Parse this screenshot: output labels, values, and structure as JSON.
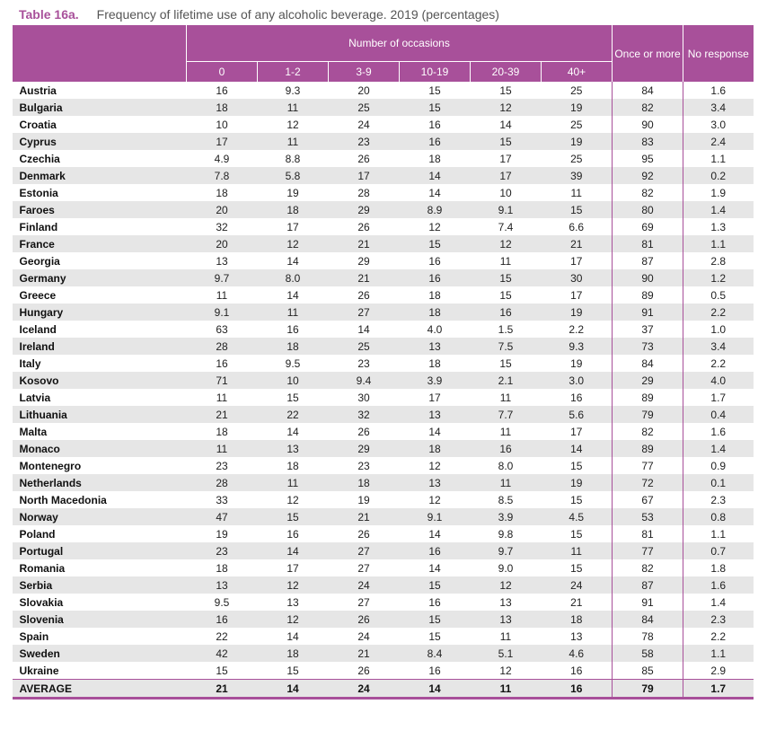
{
  "title": {
    "table_number": "Table 16a.",
    "caption": "Frequency of lifetime use of any alcoholic beverage. 2019 (percentages)"
  },
  "header": {
    "group_label": "Number of occasions",
    "once_or_more": "Once or more",
    "no_response": "No response",
    "occasions": [
      "0",
      "1-2",
      "3-9",
      "10-19",
      "20-39",
      "40+"
    ]
  },
  "rows": [
    {
      "country": "Austria",
      "v": [
        "16",
        "9.3",
        "20",
        "15",
        "15",
        "25",
        "84",
        "1.6"
      ]
    },
    {
      "country": "Bulgaria",
      "v": [
        "18",
        "11",
        "25",
        "15",
        "12",
        "19",
        "82",
        "3.4"
      ]
    },
    {
      "country": "Croatia",
      "v": [
        "10",
        "12",
        "24",
        "16",
        "14",
        "25",
        "90",
        "3.0"
      ]
    },
    {
      "country": "Cyprus",
      "v": [
        "17",
        "11",
        "23",
        "16",
        "15",
        "19",
        "83",
        "2.4"
      ]
    },
    {
      "country": "Czechia",
      "v": [
        "4.9",
        "8.8",
        "26",
        "18",
        "17",
        "25",
        "95",
        "1.1"
      ]
    },
    {
      "country": "Denmark",
      "v": [
        "7.8",
        "5.8",
        "17",
        "14",
        "17",
        "39",
        "92",
        "0.2"
      ]
    },
    {
      "country": "Estonia",
      "v": [
        "18",
        "19",
        "28",
        "14",
        "10",
        "11",
        "82",
        "1.9"
      ]
    },
    {
      "country": "Faroes",
      "v": [
        "20",
        "18",
        "29",
        "8.9",
        "9.1",
        "15",
        "80",
        "1.4"
      ]
    },
    {
      "country": "Finland",
      "v": [
        "32",
        "17",
        "26",
        "12",
        "7.4",
        "6.6",
        "69",
        "1.3"
      ]
    },
    {
      "country": "France",
      "v": [
        "20",
        "12",
        "21",
        "15",
        "12",
        "21",
        "81",
        "1.1"
      ]
    },
    {
      "country": "Georgia",
      "v": [
        "13",
        "14",
        "29",
        "16",
        "11",
        "17",
        "87",
        "2.8"
      ]
    },
    {
      "country": "Germany",
      "v": [
        "9.7",
        "8.0",
        "21",
        "16",
        "15",
        "30",
        "90",
        "1.2"
      ]
    },
    {
      "country": "Greece",
      "v": [
        "11",
        "14",
        "26",
        "18",
        "15",
        "17",
        "89",
        "0.5"
      ]
    },
    {
      "country": "Hungary",
      "v": [
        "9.1",
        "11",
        "27",
        "18",
        "16",
        "19",
        "91",
        "2.2"
      ]
    },
    {
      "country": "Iceland",
      "v": [
        "63",
        "16",
        "14",
        "4.0",
        "1.5",
        "2.2",
        "37",
        "1.0"
      ]
    },
    {
      "country": "Ireland",
      "v": [
        "28",
        "18",
        "25",
        "13",
        "7.5",
        "9.3",
        "73",
        "3.4"
      ]
    },
    {
      "country": "Italy",
      "v": [
        "16",
        "9.5",
        "23",
        "18",
        "15",
        "19",
        "84",
        "2.2"
      ]
    },
    {
      "country": "Kosovo",
      "v": [
        "71",
        "10",
        "9.4",
        "3.9",
        "2.1",
        "3.0",
        "29",
        "4.0"
      ]
    },
    {
      "country": "Latvia",
      "v": [
        "11",
        "15",
        "30",
        "17",
        "11",
        "16",
        "89",
        "1.7"
      ]
    },
    {
      "country": "Lithuania",
      "v": [
        "21",
        "22",
        "32",
        "13",
        "7.7",
        "5.6",
        "79",
        "0.4"
      ]
    },
    {
      "country": "Malta",
      "v": [
        "18",
        "14",
        "26",
        "14",
        "11",
        "17",
        "82",
        "1.6"
      ]
    },
    {
      "country": "Monaco",
      "v": [
        "11",
        "13",
        "29",
        "18",
        "16",
        "14",
        "89",
        "1.4"
      ]
    },
    {
      "country": "Montenegro",
      "v": [
        "23",
        "18",
        "23",
        "12",
        "8.0",
        "15",
        "77",
        "0.9"
      ]
    },
    {
      "country": "Netherlands",
      "v": [
        "28",
        "11",
        "18",
        "13",
        "11",
        "19",
        "72",
        "0.1"
      ]
    },
    {
      "country": "North Macedonia",
      "v": [
        "33",
        "12",
        "19",
        "12",
        "8.5",
        "15",
        "67",
        "2.3"
      ]
    },
    {
      "country": "Norway",
      "v": [
        "47",
        "15",
        "21",
        "9.1",
        "3.9",
        "4.5",
        "53",
        "0.8"
      ]
    },
    {
      "country": "Poland",
      "v": [
        "19",
        "16",
        "26",
        "14",
        "9.8",
        "15",
        "81",
        "1.1"
      ]
    },
    {
      "country": "Portugal",
      "v": [
        "23",
        "14",
        "27",
        "16",
        "9.7",
        "11",
        "77",
        "0.7"
      ]
    },
    {
      "country": "Romania",
      "v": [
        "18",
        "17",
        "27",
        "14",
        "9.0",
        "15",
        "82",
        "1.8"
      ]
    },
    {
      "country": "Serbia",
      "v": [
        "13",
        "12",
        "24",
        "15",
        "12",
        "24",
        "87",
        "1.6"
      ]
    },
    {
      "country": "Slovakia",
      "v": [
        "9.5",
        "13",
        "27",
        "16",
        "13",
        "21",
        "91",
        "1.4"
      ]
    },
    {
      "country": "Slovenia",
      "v": [
        "16",
        "12",
        "26",
        "15",
        "13",
        "18",
        "84",
        "2.3"
      ]
    },
    {
      "country": "Spain",
      "v": [
        "22",
        "14",
        "24",
        "15",
        "11",
        "13",
        "78",
        "2.2"
      ]
    },
    {
      "country": "Sweden",
      "v": [
        "42",
        "18",
        "21",
        "8.4",
        "5.1",
        "4.6",
        "58",
        "1.1"
      ]
    },
    {
      "country": "Ukraine",
      "v": [
        "15",
        "15",
        "26",
        "16",
        "12",
        "16",
        "85",
        "2.9"
      ]
    }
  ],
  "average": {
    "country": "AVERAGE",
    "v": [
      "21",
      "14",
      "24",
      "14",
      "11",
      "16",
      "79",
      "1.7"
    ]
  },
  "colors": {
    "accent": "#a8509a",
    "stripe": "#e6e6e6"
  }
}
